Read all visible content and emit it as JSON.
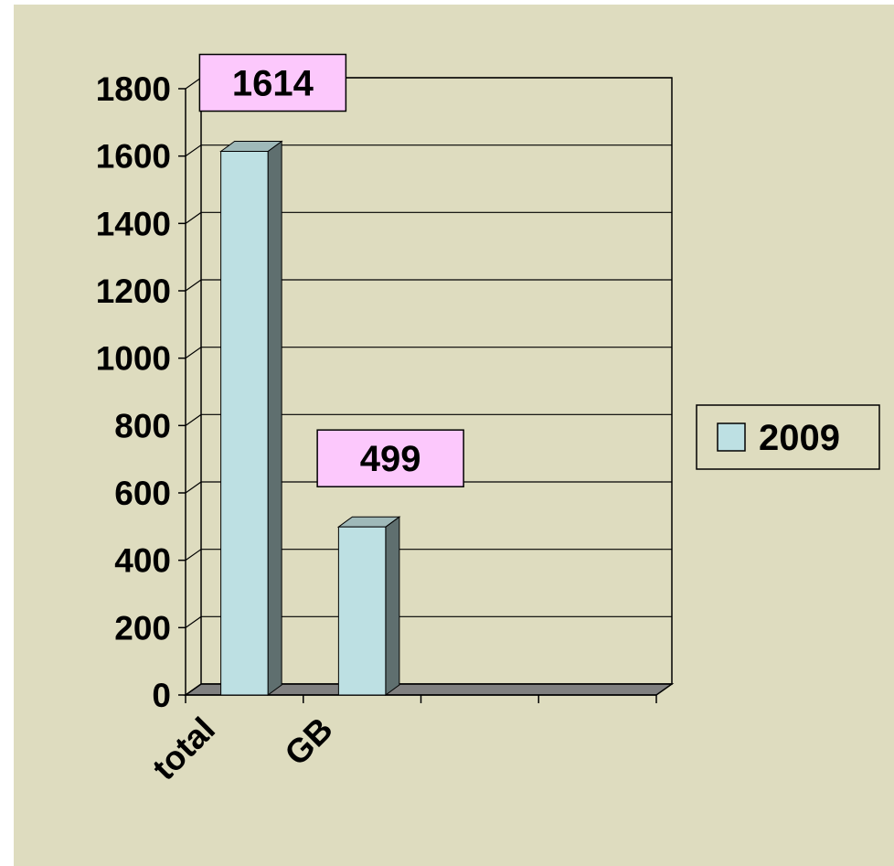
{
  "chart_data": {
    "type": "bar3d",
    "categories": [
      "total",
      "GB",
      null,
      null
    ],
    "series": [
      {
        "name": "2009",
        "color": "#bde0e3",
        "values": [
          1614,
          499,
          null,
          null
        ]
      }
    ],
    "ylim": [
      0,
      1800
    ],
    "yticks": [
      0,
      200,
      400,
      600,
      800,
      1000,
      1200,
      1400,
      1600,
      1800
    ],
    "grid": true,
    "legend": "right",
    "label_color": "#fcc8fc"
  }
}
